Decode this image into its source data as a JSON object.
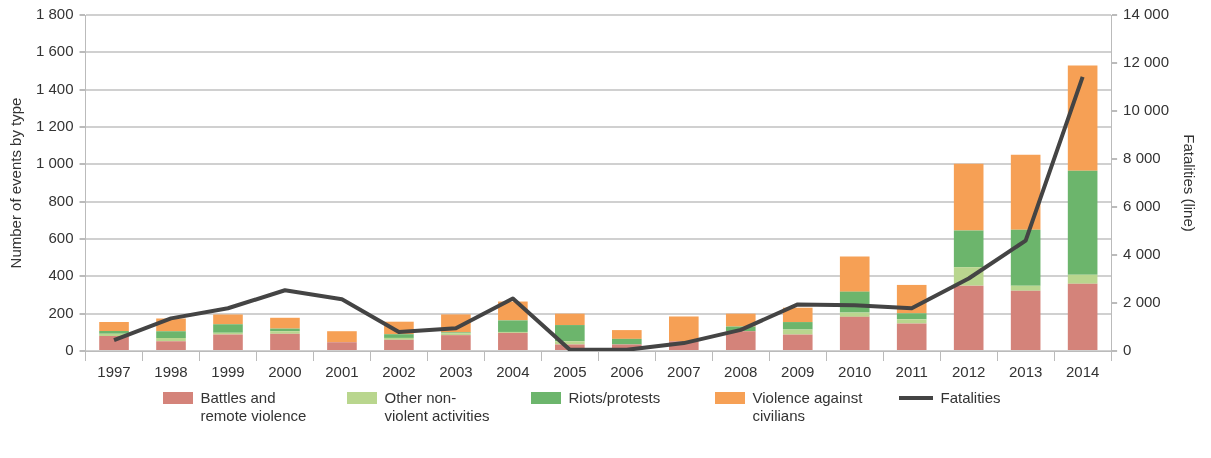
{
  "chart_data": {
    "type": "bar",
    "stacked": true,
    "ylabel": "Number of events by type",
    "y2label": "Fatalities (line)",
    "categories": [
      "1997",
      "1998",
      "1999",
      "2000",
      "2001",
      "2002",
      "2003",
      "2004",
      "2005",
      "2006",
      "2007",
      "2008",
      "2009",
      "2010",
      "2011",
      "2012",
      "2013",
      "2014"
    ],
    "series": [
      {
        "name": "Battles and remote violence",
        "color": "#d4837a",
        "values": [
          80,
          52,
          88,
          92,
          47,
          60,
          85,
          97,
          35,
          35,
          52,
          106,
          88,
          183,
          147,
          350,
          323,
          360
        ]
      },
      {
        "name": "Other non-violent activities",
        "color": "#b9d68e",
        "values": [
          12,
          18,
          10,
          14,
          0,
          10,
          10,
          5,
          17,
          null,
          0,
          0,
          27,
          23,
          23,
          99,
          27,
          49
        ]
      },
      {
        "name": "Riots/protests",
        "color": "#6cb56c",
        "values": [
          15,
          36,
          45,
          14,
          0,
          20,
          5,
          62,
          87,
          30,
          0,
          25,
          40,
          112,
          32,
          197,
          300,
          557
        ]
      },
      {
        "name": "Violence against civilians",
        "color": "#f6a055",
        "values": [
          48,
          68,
          53,
          58,
          59,
          67,
          96,
          101,
          61,
          47,
          133,
          69,
          77,
          188,
          152,
          357,
          401,
          564
        ]
      },
      {
        "name": "Fatalities",
        "type": "line",
        "axis": "y2",
        "color": "#444444",
        "marker": "none",
        "values": [
          450,
          1360,
          1780,
          2530,
          2160,
          790,
          950,
          2190,
          50,
          50,
          330,
          880,
          1940,
          1910,
          1780,
          3020,
          4600,
          11420
        ]
      }
    ],
    "ylim": [
      0,
      1800
    ],
    "yticks": [
      0,
      200,
      400,
      600,
      800,
      {
        "value": 1000,
        "label": "1 000"
      },
      {
        "value": 1200,
        "label": "1 200"
      },
      {
        "value": 1400,
        "label": "1 400"
      },
      {
        "value": 1600,
        "label": "1 600"
      },
      {
        "value": 1800,
        "label": "1 800"
      }
    ],
    "y2lim": [
      0,
      14000
    ],
    "y2ticks": [
      0,
      {
        "value": 2000,
        "label": "2 000"
      },
      {
        "value": 4000,
        "label": "4 000"
      },
      {
        "value": 6000,
        "label": "6 000"
      },
      {
        "value": 8000,
        "label": "8 000"
      },
      {
        "value": 10000,
        "label": "10 000"
      },
      {
        "value": 12000,
        "label": "12 000"
      },
      {
        "value": 14000,
        "label": "14 000"
      }
    ],
    "grid": "y",
    "legend": "bottom"
  }
}
